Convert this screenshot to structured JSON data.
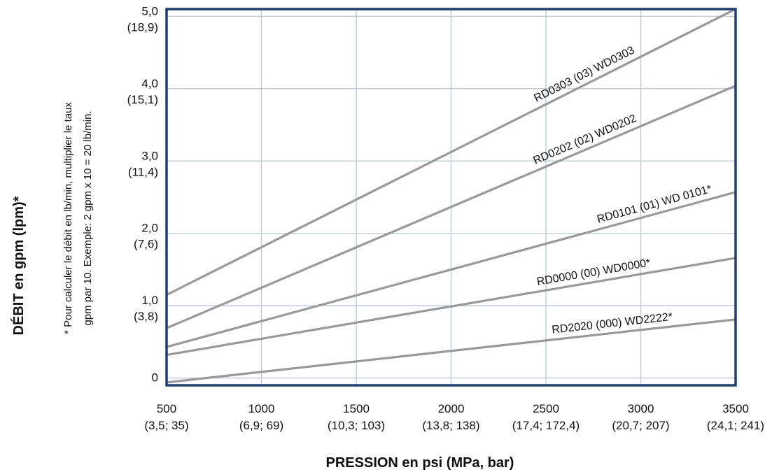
{
  "chart_data": {
    "type": "line",
    "xlabel": "PRESSION en psi (MPa, bar)",
    "ylabel": "DÉBIT en gpm (lpm)*",
    "note_line1": "* Pour calculer le débit en lb/min, multiplier le taux",
    "note_line2": "gpm par 10. Exemple: 2 gpm x 10 = 20 lb/min.",
    "xlim": [
      500,
      3500
    ],
    "ylim": [
      -0.1,
      5.1
    ],
    "grid": true,
    "x_ticks": [
      {
        "value": 500,
        "label": "500",
        "sublabel": "(3,5; 35)"
      },
      {
        "value": 1000,
        "label": "1000",
        "sublabel": "(6,9; 69)"
      },
      {
        "value": 1500,
        "label": "1500",
        "sublabel": "(10,3; 103)"
      },
      {
        "value": 2000,
        "label": "2000",
        "sublabel": "(13,8; 138)"
      },
      {
        "value": 2500,
        "label": "2500",
        "sublabel": "(17,4; 172,4)"
      },
      {
        "value": 3000,
        "label": "3000",
        "sublabel": "(20,7; 207)"
      },
      {
        "value": 3500,
        "label": "3500",
        "sublabel": "(24,1; 241)"
      }
    ],
    "y_ticks": [
      {
        "value": 0,
        "label": "0",
        "sublabel": ""
      },
      {
        "value": 1.0,
        "label": "1,0",
        "sublabel": "(3,8)"
      },
      {
        "value": 2.0,
        "label": "2,0",
        "sublabel": "(7,6)"
      },
      {
        "value": 3.0,
        "label": "3,0",
        "sublabel": "(11,4)"
      },
      {
        "value": 4.0,
        "label": "4,0",
        "sublabel": "(15,1)"
      },
      {
        "value": 5.0,
        "label": "5,0",
        "sublabel": "(18,9)"
      }
    ],
    "series": [
      {
        "name": "RD0303 (03) WD0303",
        "x": [
          500,
          3500
        ],
        "y": [
          1.15,
          5.1
        ]
      },
      {
        "name": "RD0202 (02) WD0202",
        "x": [
          500,
          3500
        ],
        "y": [
          0.69,
          4.04
        ]
      },
      {
        "name": "RD0101 (01) WD 0101*",
        "x": [
          500,
          3500
        ],
        "y": [
          0.43,
          2.57
        ]
      },
      {
        "name": "RD0000 (00) WD0000*",
        "x": [
          500,
          3500
        ],
        "y": [
          0.32,
          1.66
        ]
      },
      {
        "name": "RD2020 (000) WD2222*",
        "x": [
          500,
          3500
        ],
        "y": [
          -0.06,
          0.81
        ]
      }
    ],
    "line_color": "#999999",
    "frame_color": "#1b3f7a",
    "grid_color": "#b8c7dc"
  }
}
